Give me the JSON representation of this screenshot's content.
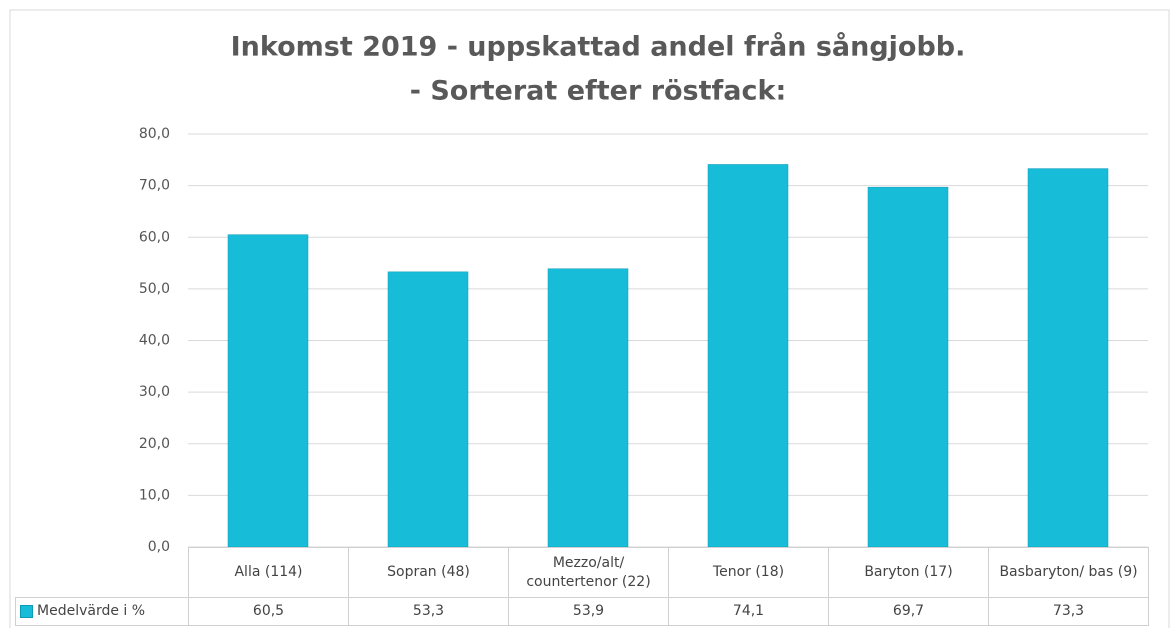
{
  "chart_data": {
    "type": "bar",
    "title": [
      "Inkomst 2019 - uppskattad andel från sångjobb.",
      "- Sorterat efter röstfack:"
    ],
    "categories": [
      "Alla (114)",
      "Sopran (48)",
      "Mezzo/alt/ countertenor (22)",
      "Tenor (18)",
      "Baryton (17)",
      "Basbaryton/ bas (9)"
    ],
    "series": [
      {
        "name": "Medelvärde i %",
        "color": "#17bcd9",
        "values": [
          60.5,
          53.3,
          53.9,
          74.1,
          69.7,
          73.3
        ],
        "value_labels": [
          "60,5",
          "53,3",
          "53,9",
          "74,1",
          "69,7",
          "73,3"
        ]
      }
    ],
    "ylim": [
      0,
      80
    ],
    "yticks": [
      {
        "value": 0,
        "label": "0,0"
      },
      {
        "value": 10,
        "label": "10,0"
      },
      {
        "value": 20,
        "label": "20,0"
      },
      {
        "value": 30,
        "label": "30,0"
      },
      {
        "value": 40,
        "label": "40,0"
      },
      {
        "value": 50,
        "label": "50,0"
      },
      {
        "value": 60,
        "label": "60,0"
      },
      {
        "value": 70,
        "label": "70,0"
      },
      {
        "value": 80,
        "label": "80,0"
      }
    ],
    "grid": true
  }
}
